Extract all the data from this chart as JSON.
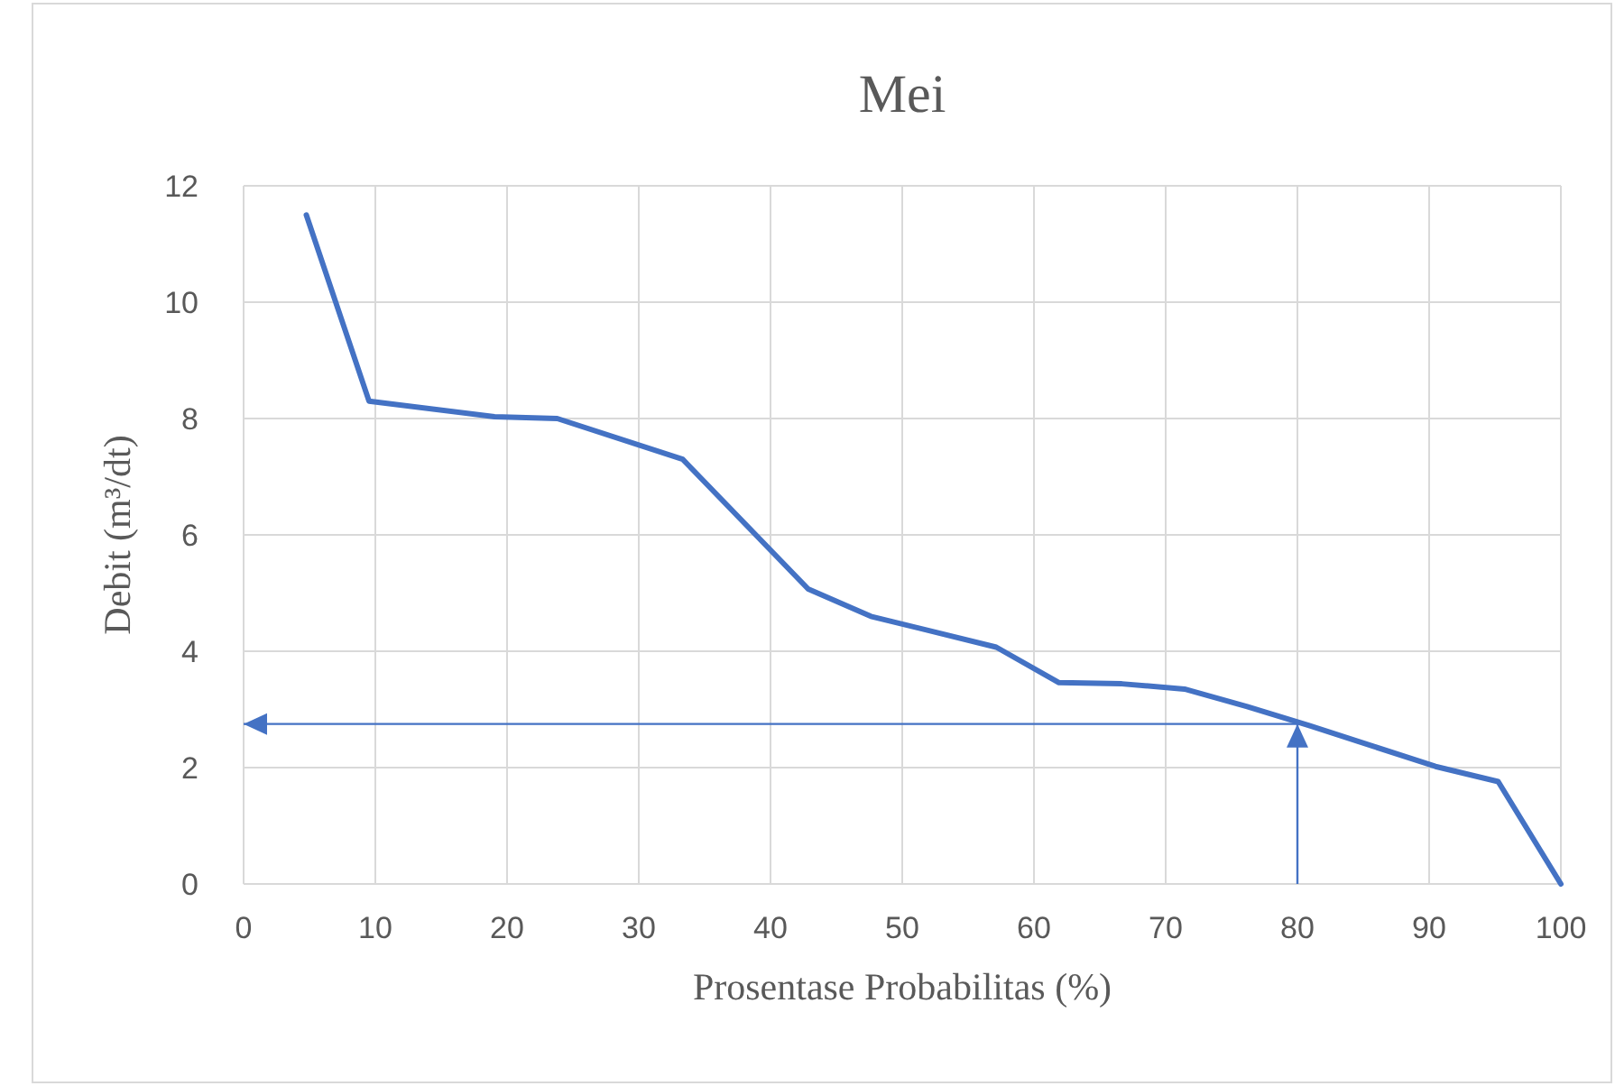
{
  "chart_data": {
    "type": "line",
    "title": "Mei",
    "xlabel": "Prosentase Probabilitas (%)",
    "ylabel": "Debit (m³/dt)",
    "xlim": [
      0,
      100
    ],
    "xticks": [
      0,
      10,
      20,
      30,
      40,
      50,
      60,
      70,
      80,
      90,
      100
    ],
    "ylim": [
      0,
      12
    ],
    "yticks": [
      0,
      2,
      4,
      6,
      8,
      10,
      12
    ],
    "grid": true,
    "ref_lines": [
      {
        "axis": "x",
        "value": 80,
        "color": "#4472c4"
      },
      {
        "axis": "y",
        "value": 2.75,
        "color": "#4472c4"
      }
    ],
    "series": [
      {
        "color": "#4472c4",
        "x": [
          4.76,
          9.52,
          19.05,
          23.81,
          33.33,
          42.86,
          47.62,
          57.14,
          61.9,
          66.67,
          71.43,
          76.19,
          80.95,
          85.71,
          90.48,
          95.24,
          100
        ],
        "values": [
          11.5,
          8.3,
          8.03,
          8.0,
          7.3,
          5.07,
          4.6,
          4.07,
          3.46,
          3.44,
          3.35,
          3.05,
          2.72,
          2.37,
          2.02,
          1.76,
          0
        ]
      }
    ]
  }
}
